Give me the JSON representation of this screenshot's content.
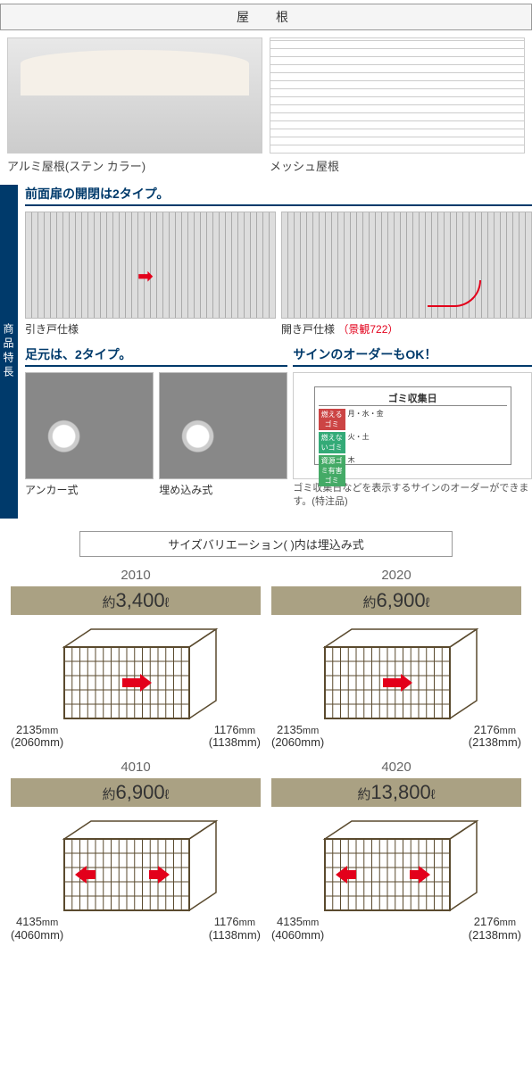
{
  "roof": {
    "header": "屋　根",
    "items": [
      {
        "label": "アルミ屋根(ステン カラー)"
      },
      {
        "label": "メッシュ屋根"
      }
    ]
  },
  "features": {
    "sidebar": "商品特長",
    "door": {
      "heading": "前面扉の開閉は2タイプ。",
      "items": [
        {
          "label": "引き戸仕様",
          "note": ""
        },
        {
          "label": "開き戸仕様",
          "note": "（景観722）"
        }
      ]
    },
    "foot": {
      "heading": "足元は、2タイプ。",
      "items": [
        {
          "label": "アンカー式"
        },
        {
          "label": "埋め込み式"
        }
      ]
    },
    "sign": {
      "heading": "サインのオーダーもOK！",
      "title": "ゴミ収集日",
      "rows": [
        {
          "tag": "燃えるゴミ",
          "val": "月・水・金"
        },
        {
          "tag": "燃えないゴミ",
          "val": "火・土"
        },
        {
          "tag": "資源ゴミ有害ゴミ",
          "val": "木"
        }
      ],
      "note": "ゴミ収集日などを表示するサインのオーダーができます。(特注品)"
    }
  },
  "sizes": {
    "header": "サイズバリエーション( )内は埋込み式",
    "items": [
      {
        "model": "2010",
        "capacity_prefix": "約",
        "capacity": "3,400",
        "capacity_unit": "ℓ",
        "width_mm": "2135",
        "width_paren": "(2060mm)",
        "depth_mm": "1176",
        "depth_paren": "(1138mm)",
        "doors": 1
      },
      {
        "model": "2020",
        "capacity_prefix": "約",
        "capacity": "6,900",
        "capacity_unit": "ℓ",
        "width_mm": "2135",
        "width_paren": "(2060mm)",
        "depth_mm": "2176",
        "depth_paren": "(2138mm)",
        "doors": 1
      },
      {
        "model": "4010",
        "capacity_prefix": "約",
        "capacity": "6,900",
        "capacity_unit": "ℓ",
        "width_mm": "4135",
        "width_paren": "(4060mm)",
        "depth_mm": "1176",
        "depth_paren": "(1138mm)",
        "doors": 2
      },
      {
        "model": "4020",
        "capacity_prefix": "約",
        "capacity": "13,800",
        "capacity_unit": "ℓ",
        "width_mm": "4135",
        "width_paren": "(4060mm)",
        "depth_mm": "2176",
        "depth_paren": "(2138mm)",
        "doors": 2
      }
    ]
  },
  "style": {
    "brand_blue": "#003a6b",
    "accent_red": "#e3001b",
    "capacity_bg": "#aaa183",
    "cage_stroke": "#5a4a2e"
  }
}
